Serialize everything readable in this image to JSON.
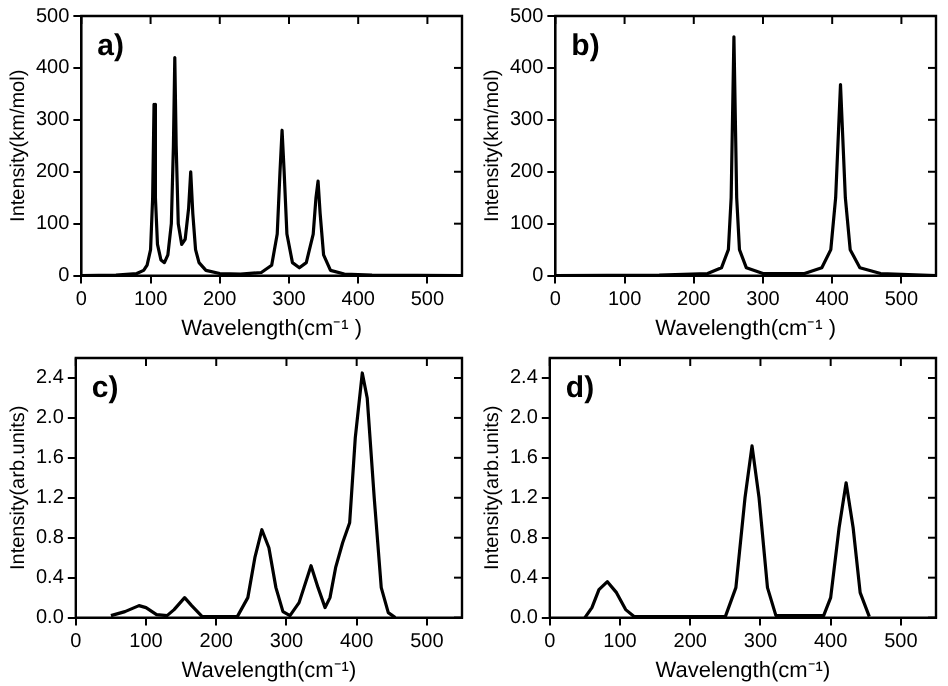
{
  "chart_data": [
    {
      "type": "line",
      "xlabel": "Wavelength(cm⁻¹ )",
      "ylabel": "Intensity(km/mol)",
      "annotations": [
        "a)"
      ],
      "x": [
        0,
        50,
        80,
        90,
        95,
        100,
        103,
        105,
        107,
        110,
        115,
        120,
        125,
        130,
        133,
        135,
        137,
        140,
        145,
        150,
        155,
        158,
        161,
        165,
        170,
        180,
        200,
        230,
        260,
        275,
        283,
        287,
        290,
        293,
        297,
        305,
        315,
        325,
        335,
        339,
        342,
        345,
        350,
        360,
        380,
        420,
        550
      ],
      "series": [
        {
          "color": "#000000",
          "values": [
            0,
            1,
            4,
            10,
            20,
            50,
            150,
            330,
            150,
            60,
            30,
            25,
            40,
            100,
            250,
            420,
            250,
            100,
            60,
            70,
            130,
            200,
            120,
            50,
            25,
            10,
            4,
            3,
            6,
            20,
            80,
            200,
            280,
            200,
            80,
            25,
            15,
            25,
            80,
            150,
            182,
            120,
            40,
            10,
            3,
            1,
            0
          ]
        }
      ],
      "xlim": [
        0,
        550
      ],
      "xticks": [
        0,
        100,
        200,
        300,
        400,
        500
      ],
      "ylim": [
        0,
        500
      ],
      "yticks": [
        0,
        100,
        200,
        300,
        400,
        500
      ]
    },
    {
      "type": "line",
      "xlabel": "Wavelength(cm⁻¹ )",
      "ylabel": "Intensity(km/mol)",
      "annotations": [
        "b)"
      ],
      "x": [
        0,
        150,
        220,
        240,
        250,
        254,
        258,
        262,
        266,
        276,
        300,
        360,
        385,
        398,
        405,
        412,
        419,
        426,
        440,
        470,
        550
      ],
      "series": [
        {
          "color": "#000000",
          "values": [
            0,
            1,
            4,
            15,
            50,
            150,
            460,
            150,
            50,
            15,
            4,
            4,
            15,
            50,
            150,
            368,
            150,
            50,
            15,
            4,
            0
          ]
        }
      ],
      "xlim": [
        0,
        550
      ],
      "xticks": [
        0,
        100,
        200,
        300,
        400,
        500
      ],
      "ylim": [
        0,
        500
      ],
      "yticks": [
        0,
        100,
        200,
        300,
        400,
        500
      ]
    },
    {
      "type": "line",
      "xlabel": "Wavelength(cm⁻¹)",
      "ylabel": "Intensity(arb.units)",
      "annotations": [
        "c)"
      ],
      "x": [
        50,
        70,
        90,
        100,
        115,
        130,
        140,
        155,
        165,
        180,
        230,
        245,
        255,
        265,
        275,
        285,
        295,
        305,
        318,
        335,
        345,
        355,
        362,
        370,
        380,
        390,
        398,
        408,
        415,
        425,
        435,
        445,
        455
      ],
      "series": [
        {
          "color": "#000000",
          "values": [
            0.02,
            0.06,
            0.12,
            0.1,
            0.03,
            0.02,
            0.08,
            0.2,
            0.12,
            0.01,
            0.01,
            0.2,
            0.6,
            0.88,
            0.7,
            0.3,
            0.06,
            0.02,
            0.15,
            0.52,
            0.3,
            0.1,
            0.2,
            0.5,
            0.75,
            0.95,
            1.8,
            2.45,
            2.2,
            1.2,
            0.3,
            0.05,
            0
          ]
        }
      ],
      "xlim": [
        0,
        550
      ],
      "xticks": [
        0,
        100,
        200,
        300,
        400,
        500
      ],
      "ylim": [
        0,
        2.6
      ],
      "yticks": [
        {
          "value": 0,
          "label": "0.0"
        },
        {
          "value": 0.4,
          "label": "0.4"
        },
        {
          "value": 0.8,
          "label": "0.8"
        },
        {
          "value": 1.2,
          "label": "1.2"
        },
        {
          "value": 1.6,
          "label": "1.6"
        },
        {
          "value": 2.0,
          "label": "2.0"
        },
        {
          "value": 2.4,
          "label": "2.4"
        }
      ]
    },
    {
      "type": "line",
      "xlabel": "Wavelength(cm⁻¹)",
      "ylabel": "Intensity(arb.units)",
      "annotations": [
        "d)"
      ],
      "x": [
        50,
        60,
        70,
        82,
        95,
        108,
        120,
        250,
        265,
        278,
        288,
        298,
        310,
        322,
        390,
        400,
        412,
        422,
        432,
        442,
        455
      ],
      "series": [
        {
          "color": "#000000",
          "values": [
            0,
            0.1,
            0.28,
            0.36,
            0.25,
            0.08,
            0.01,
            0.01,
            0.3,
            1.2,
            1.72,
            1.2,
            0.3,
            0.02,
            0.02,
            0.2,
            0.9,
            1.35,
            0.9,
            0.25,
            0.01
          ]
        }
      ],
      "xlim": [
        0,
        550
      ],
      "xticks": [
        0,
        100,
        200,
        300,
        400,
        500
      ],
      "ylim": [
        0,
        2.6
      ],
      "yticks": [
        {
          "value": 0,
          "label": "0.0"
        },
        {
          "value": 0.4,
          "label": "0.4"
        },
        {
          "value": 0.8,
          "label": "0.8"
        },
        {
          "value": 1.2,
          "label": "1.2"
        },
        {
          "value": 1.6,
          "label": "1.6"
        },
        {
          "value": 2.0,
          "label": "2.0"
        },
        {
          "value": 2.4,
          "label": "2.4"
        }
      ]
    }
  ]
}
